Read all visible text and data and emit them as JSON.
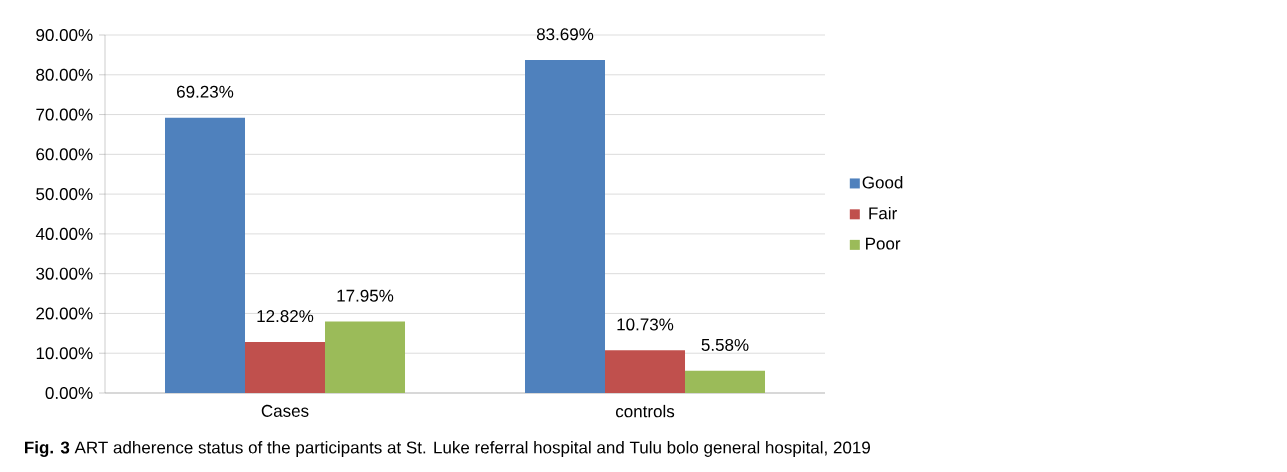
{
  "chart_data": {
    "type": "bar",
    "categories": [
      "Cases",
      "controls"
    ],
    "series": [
      {
        "name": "Good",
        "color": "#4f81bd",
        "values": [
          69.23,
          83.69
        ],
        "value_labels": [
          "69.23%",
          "83.69%"
        ]
      },
      {
        "name": "Fair",
        "color": "#c0504d",
        "values": [
          12.82,
          10.73
        ],
        "value_labels": [
          "12.82%",
          "10.73%"
        ]
      },
      {
        "name": "Poor",
        "color": "#9bbb59",
        "values": [
          17.95,
          5.58
        ],
        "value_labels": [
          "17.95%",
          "5.58%"
        ]
      }
    ],
    "ylim": [
      0,
      90
    ],
    "yticks": [
      {
        "value": 0,
        "label": "0.00%"
      },
      {
        "value": 10,
        "label": "10.00%"
      },
      {
        "value": 20,
        "label": "20.00%"
      },
      {
        "value": 30,
        "label": "30.00%"
      },
      {
        "value": 40,
        "label": "40.00%"
      },
      {
        "value": 50,
        "label": "50.00%"
      },
      {
        "value": 60,
        "label": "60.00%"
      },
      {
        "value": 70,
        "label": "70.00%"
      },
      {
        "value": 80,
        "label": "80.00%"
      },
      {
        "value": 90,
        "label": "90.00%"
      }
    ],
    "grid": "y",
    "legend": "right",
    "annotations": [
      "**Fig. 3** ART adherence status of the participants at St. Luke referral hospital and Tulu bolo general hospital, 2019"
    ]
  }
}
